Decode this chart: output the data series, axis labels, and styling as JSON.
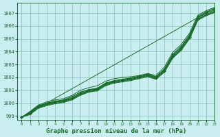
{
  "title": "Graphe pression niveau de la mer (hPa)",
  "background_color": "#c8eef0",
  "grid_color": "#8bbcb8",
  "line_color": "#1a6b2a",
  "xlim": [
    -0.5,
    23
  ],
  "ylim": [
    998.7,
    1007.8
  ],
  "yticks": [
    999,
    1000,
    1001,
    1002,
    1003,
    1004,
    1005,
    1006,
    1007
  ],
  "xticks": [
    0,
    1,
    2,
    3,
    4,
    5,
    6,
    7,
    8,
    9,
    10,
    11,
    12,
    13,
    14,
    15,
    16,
    17,
    18,
    19,
    20,
    21,
    22,
    23
  ],
  "straight_line": [
    998.9,
    1007.4
  ],
  "series": [
    {
      "x": [
        0,
        1,
        2,
        3,
        4,
        5,
        6,
        7,
        8,
        9,
        10,
        11,
        12,
        13,
        14,
        15,
        16,
        17,
        18,
        19,
        20,
        21,
        22,
        23
      ],
      "y": [
        998.9,
        999.3,
        999.8,
        1000.0,
        1000.15,
        1000.25,
        1000.5,
        1000.85,
        1001.05,
        1001.15,
        1001.55,
        1001.75,
        1001.85,
        1001.95,
        1002.1,
        1002.25,
        1002.05,
        1002.65,
        1003.8,
        1004.4,
        1005.3,
        1006.75,
        1007.1,
        1007.35
      ],
      "marker": true,
      "lw": 0.9
    },
    {
      "x": [
        0,
        1,
        2,
        3,
        4,
        5,
        6,
        7,
        8,
        9,
        10,
        11,
        12,
        13,
        14,
        15,
        16,
        17,
        18,
        19,
        20,
        21,
        22,
        23
      ],
      "y": [
        998.9,
        999.25,
        999.75,
        999.95,
        1000.1,
        1000.2,
        1000.4,
        1000.75,
        1001.0,
        1001.1,
        1001.5,
        1001.7,
        1001.8,
        1001.9,
        1002.05,
        1002.2,
        1002.0,
        1002.55,
        1003.7,
        1004.3,
        1005.2,
        1006.65,
        1007.0,
        1007.25
      ],
      "marker": true,
      "lw": 0.9
    },
    {
      "x": [
        0,
        1,
        2,
        3,
        4,
        5,
        6,
        7,
        8,
        9,
        10,
        11,
        12,
        13,
        14,
        15,
        16,
        17,
        18,
        19,
        20,
        21,
        22,
        23
      ],
      "y": [
        998.9,
        999.2,
        999.7,
        999.9,
        1000.05,
        1000.15,
        1000.35,
        1000.7,
        1000.95,
        1001.05,
        1001.45,
        1001.65,
        1001.75,
        1001.85,
        1002.0,
        1002.15,
        1001.95,
        1002.5,
        1003.6,
        1004.2,
        1005.1,
        1006.55,
        1006.9,
        1007.15
      ],
      "marker": true,
      "lw": 0.9
    },
    {
      "x": [
        0,
        1,
        2,
        3,
        4,
        5,
        6,
        7,
        8,
        9,
        10,
        11,
        12,
        13,
        14,
        15,
        16,
        17,
        18,
        19,
        20,
        21,
        22,
        23
      ],
      "y": [
        998.9,
        999.15,
        999.65,
        999.85,
        1000.0,
        1000.1,
        1000.3,
        1000.65,
        1000.9,
        1001.0,
        1001.4,
        1001.6,
        1001.7,
        1001.8,
        1001.95,
        1002.1,
        1001.9,
        1002.45,
        1003.55,
        1004.15,
        1005.05,
        1006.5,
        1006.85,
        1007.1
      ],
      "marker": false,
      "lw": 0.7
    },
    {
      "x": [
        0,
        1,
        2,
        3,
        4,
        5,
        6,
        7,
        8,
        9,
        10,
        11,
        12,
        13,
        14,
        15,
        16,
        17,
        18,
        19,
        20,
        21,
        22,
        23
      ],
      "y": [
        998.9,
        999.1,
        999.6,
        999.8,
        999.95,
        1000.05,
        1000.25,
        1000.6,
        1000.85,
        1000.95,
        1001.35,
        1001.55,
        1001.65,
        1001.75,
        1001.9,
        1002.05,
        1001.85,
        1002.4,
        1003.5,
        1004.1,
        1005.0,
        1006.45,
        1006.8,
        1007.05
      ],
      "marker": false,
      "lw": 0.7
    },
    {
      "x": [
        0,
        23
      ],
      "y": [
        998.9,
        1007.4
      ],
      "marker": false,
      "lw": 0.7,
      "straight": true
    },
    {
      "x": [
        0,
        1,
        2,
        3,
        4,
        5,
        6,
        7,
        8,
        9,
        10,
        11,
        12,
        13,
        14,
        15,
        16,
        17,
        18,
        19,
        20,
        21,
        22,
        23
      ],
      "y": [
        998.9,
        999.35,
        999.85,
        1000.1,
        1000.25,
        1000.35,
        1000.6,
        1001.0,
        1001.2,
        1001.35,
        1001.7,
        1001.9,
        1002.0,
        1002.05,
        1002.15,
        1002.3,
        1002.15,
        1002.8,
        1003.95,
        1004.55,
        1005.45,
        1006.85,
        1007.2,
        1007.45
      ],
      "marker": false,
      "lw": 0.7
    }
  ]
}
